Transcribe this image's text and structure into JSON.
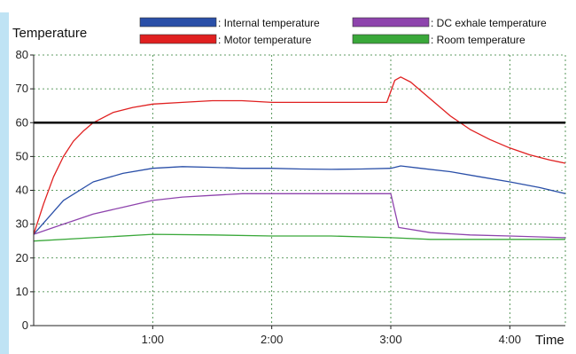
{
  "chart_data": {
    "type": "line",
    "ylabel": "Temperature",
    "xlabel": "Time",
    "x_unit": "minutes",
    "xlim": [
      0,
      268
    ],
    "ylim": [
      0,
      80
    ],
    "y_ticks": [
      0,
      10,
      20,
      30,
      40,
      50,
      60,
      70,
      80
    ],
    "x_ticks": [
      {
        "minutes": 60,
        "label": "1:00"
      },
      {
        "minutes": 120,
        "label": "2:00"
      },
      {
        "minutes": 180,
        "label": "3:00"
      },
      {
        "minutes": 240,
        "label": "4:00"
      }
    ],
    "grid": true,
    "legend_position": "top",
    "reference_line": {
      "y": 60,
      "color": "#000000"
    },
    "series": [
      {
        "name": ": Internal temperature",
        "color": "#2a4fa8",
        "points": [
          [
            0,
            27
          ],
          [
            15,
            37
          ],
          [
            30,
            42.5
          ],
          [
            45,
            45
          ],
          [
            60,
            46.5
          ],
          [
            75,
            47
          ],
          [
            90,
            46.8
          ],
          [
            105,
            46.5
          ],
          [
            120,
            46.5
          ],
          [
            135,
            46.3
          ],
          [
            150,
            46.2
          ],
          [
            165,
            46.3
          ],
          [
            180,
            46.5
          ],
          [
            185,
            47.2
          ],
          [
            195,
            46.5
          ],
          [
            210,
            45.5
          ],
          [
            225,
            44
          ],
          [
            240,
            42.5
          ],
          [
            255,
            40.8
          ],
          [
            268,
            39
          ]
        ]
      },
      {
        "name": ": DC exhale temperature",
        "color": "#8e44ad",
        "points": [
          [
            0,
            27
          ],
          [
            15,
            30
          ],
          [
            30,
            33
          ],
          [
            45,
            35
          ],
          [
            60,
            37
          ],
          [
            75,
            38
          ],
          [
            90,
            38.5
          ],
          [
            105,
            39
          ],
          [
            120,
            39
          ],
          [
            135,
            39
          ],
          [
            150,
            39
          ],
          [
            165,
            39
          ],
          [
            180,
            39
          ],
          [
            184,
            29
          ],
          [
            200,
            27.5
          ],
          [
            220,
            26.8
          ],
          [
            240,
            26.5
          ],
          [
            268,
            26
          ]
        ]
      },
      {
        "name": ": Motor temperature",
        "color": "#e02020",
        "points": [
          [
            0,
            27
          ],
          [
            5,
            36
          ],
          [
            10,
            44
          ],
          [
            15,
            50
          ],
          [
            20,
            54.5
          ],
          [
            25,
            57.5
          ],
          [
            30,
            60
          ],
          [
            40,
            63
          ],
          [
            50,
            64.5
          ],
          [
            60,
            65.5
          ],
          [
            75,
            66
          ],
          [
            90,
            66.5
          ],
          [
            105,
            66.5
          ],
          [
            120,
            66
          ],
          [
            135,
            66
          ],
          [
            150,
            66
          ],
          [
            165,
            66
          ],
          [
            178,
            66
          ],
          [
            182,
            72.5
          ],
          [
            185,
            73.5
          ],
          [
            190,
            72
          ],
          [
            200,
            67
          ],
          [
            210,
            62
          ],
          [
            220,
            58
          ],
          [
            230,
            55
          ],
          [
            240,
            52.5
          ],
          [
            250,
            50.5
          ],
          [
            260,
            49
          ],
          [
            268,
            48
          ]
        ]
      },
      {
        "name": ": Room temperature",
        "color": "#3aa83a",
        "points": [
          [
            0,
            25
          ],
          [
            30,
            26
          ],
          [
            60,
            27
          ],
          [
            90,
            26.8
          ],
          [
            120,
            26.5
          ],
          [
            150,
            26.5
          ],
          [
            180,
            26
          ],
          [
            200,
            25.5
          ],
          [
            230,
            25.5
          ],
          [
            268,
            25.5
          ]
        ]
      }
    ]
  }
}
